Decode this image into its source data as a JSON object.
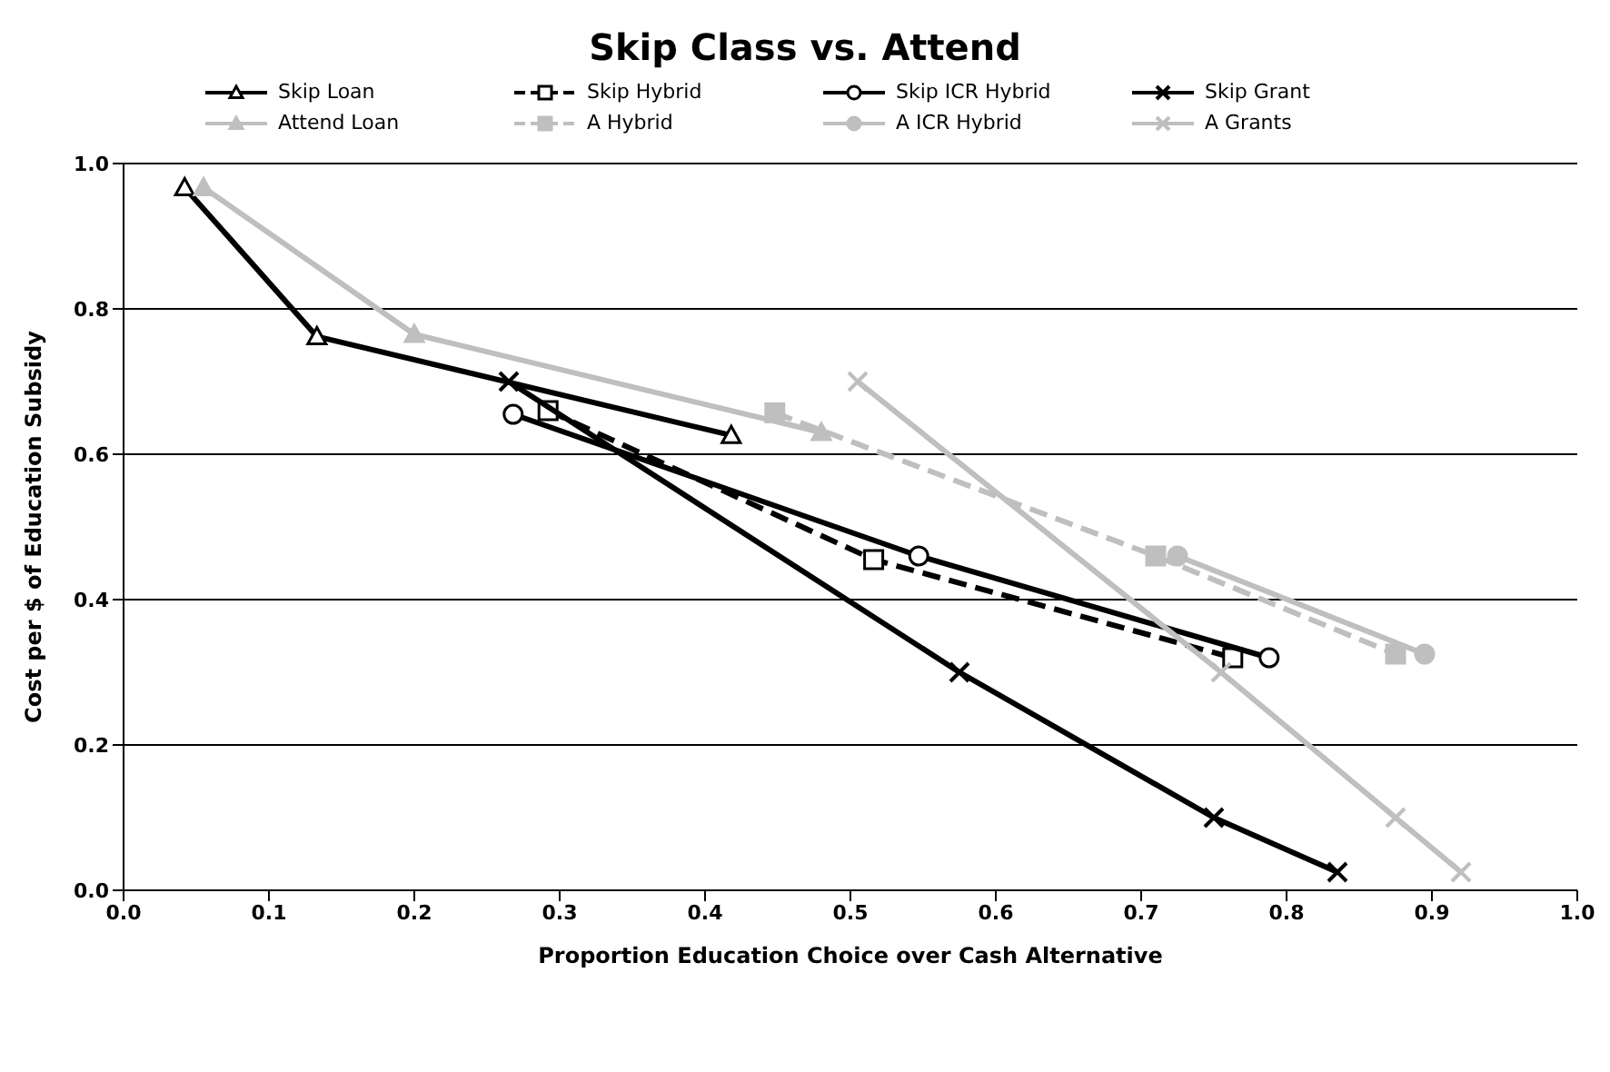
{
  "chart_data": {
    "type": "line",
    "title": "Skip Class vs. Attend",
    "xlabel": "Proportion Education Choice over Cash Alternative",
    "ylabel": "Cost per $ of Education Subsidy",
    "xlim": [
      0,
      1
    ],
    "xticks": [
      {
        "value": 0,
        "label": "0.0"
      },
      {
        "value": 0.1,
        "label": "0.1"
      },
      {
        "value": 0.2,
        "label": "0.2"
      },
      {
        "value": 0.3,
        "label": "0.3"
      },
      {
        "value": 0.4,
        "label": "0.4"
      },
      {
        "value": 0.5,
        "label": "0.5"
      },
      {
        "value": 0.6,
        "label": "0.6"
      },
      {
        "value": 0.7,
        "label": "0.7"
      },
      {
        "value": 0.8,
        "label": "0.8"
      },
      {
        "value": 0.9,
        "label": "0.9"
      },
      {
        "value": 1,
        "label": "1.0"
      }
    ],
    "ylim": [
      0,
      1
    ],
    "yticks": [
      {
        "value": 0,
        "label": "0.0"
      },
      {
        "value": 0.2,
        "label": "0.2"
      },
      {
        "value": 0.4,
        "label": "0.4"
      },
      {
        "value": 0.6,
        "label": "0.6"
      },
      {
        "value": 0.8,
        "label": "0.8"
      },
      {
        "value": 1,
        "label": "1.0"
      }
    ],
    "grid": "y",
    "legend": "top",
    "series": [
      {
        "name": "Skip Loan",
        "color": "#000000",
        "marker": "triangle",
        "x": [
          0.042,
          0.133,
          0.418
        ],
        "values": [
          0.967,
          0.762,
          0.626
        ]
      },
      {
        "name": "Skip Hybrid",
        "color": "#000000",
        "marker": "square",
        "line_style": "dashed",
        "x": [
          0.292,
          0.516,
          0.763
        ],
        "values": [
          0.66,
          0.455,
          0.32
        ]
      },
      {
        "name": "Skip ICR Hybrid",
        "color": "#000000",
        "marker": "circle",
        "x": [
          0.268,
          0.547,
          0.788
        ],
        "values": [
          0.655,
          0.46,
          0.32
        ]
      },
      {
        "name": "Skip Grant",
        "color": "#000000",
        "marker": "cross",
        "x": [
          0.265,
          0.575,
          0.75,
          0.835
        ],
        "values": [
          0.7,
          0.3,
          0.1,
          0.025
        ]
      },
      {
        "name": "Attend Loan",
        "color": "#bfbfbf",
        "marker": "triangle",
        "x": [
          0.055,
          0.2,
          0.48
        ],
        "values": [
          0.967,
          0.765,
          0.63
        ]
      },
      {
        "name": "A Hybrid",
        "color": "#bfbfbf",
        "marker": "square",
        "line_style": "dashed",
        "x": [
          0.448,
          0.71,
          0.875
        ],
        "values": [
          0.657,
          0.46,
          0.325
        ]
      },
      {
        "name": "A ICR Hybrid",
        "color": "#bfbfbf",
        "marker": "circle",
        "x": [
          0.725,
          0.895
        ],
        "values": [
          0.46,
          0.325
        ]
      },
      {
        "name": "A Grants",
        "color": "#bfbfbf",
        "marker": "cross",
        "x": [
          0.505,
          0.755,
          0.875,
          0.92
        ],
        "values": [
          0.7,
          0.3,
          0.1,
          0.025
        ]
      }
    ]
  }
}
